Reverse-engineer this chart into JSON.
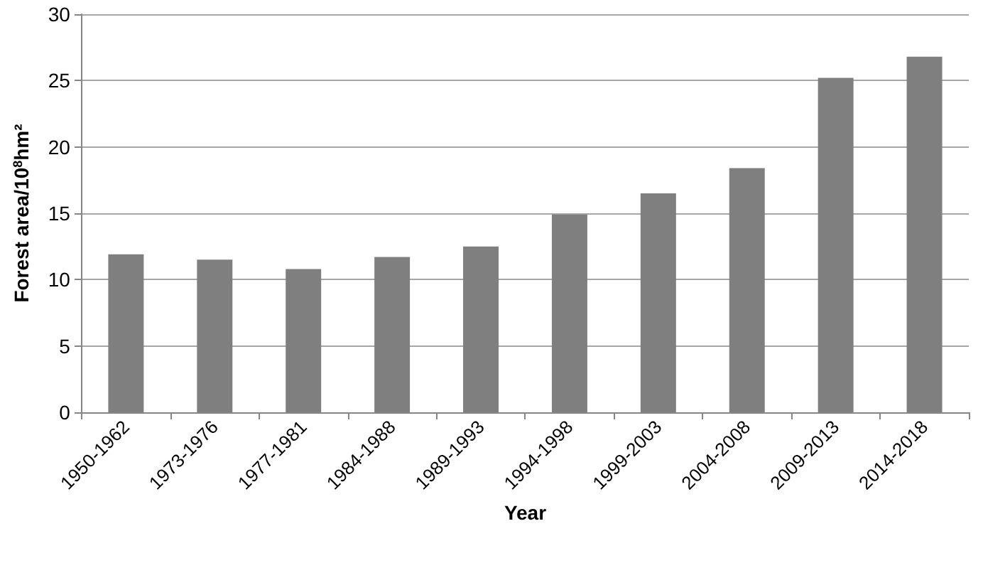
{
  "chart_data": {
    "type": "bar",
    "xlabel": "Year",
    "ylabel": "Forest area/10$^{8}$hm²",
    "categories": [
      "1950-1962",
      "1973-1976",
      "1977-1981",
      "1984-1988",
      "1989-1993",
      "1994-1998",
      "1999-2003",
      "2004-2008",
      "2009-2013",
      "2014-2018"
    ],
    "values": [
      11.9,
      11.5,
      10.8,
      11.7,
      12.5,
      14.9,
      16.5,
      18.4,
      25.2,
      26.8
    ],
    "color": "#7f7f7f",
    "ylim": [
      0,
      30
    ],
    "yticks": [
      0,
      5,
      10,
      15,
      20,
      25,
      30
    ],
    "grid": "y"
  }
}
